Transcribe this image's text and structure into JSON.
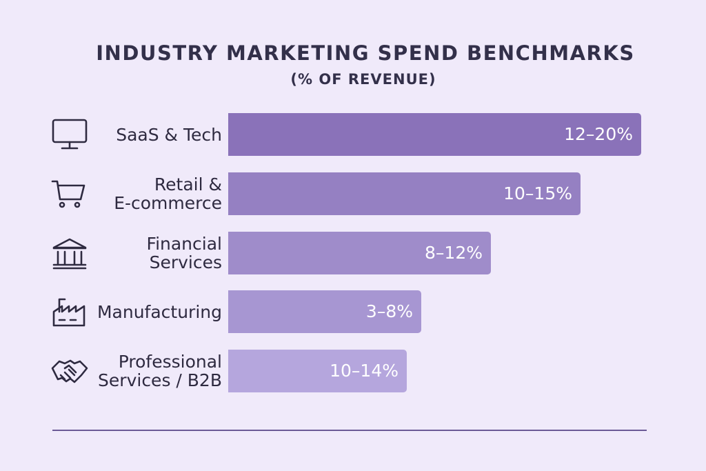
{
  "chart_data": {
    "type": "bar",
    "orientation": "horizontal",
    "title": "INDUSTRY MARKETING SPEND BENCHMARKS",
    "subtitle": "(% OF REVENUE)",
    "categories": [
      "SaaS & Tech",
      "Retail &\nE-commerce",
      "Financial\nServices",
      "Manufacturing",
      "Professional\nServices / B2B"
    ],
    "icons": [
      "monitor-icon",
      "shopping-cart-icon",
      "bank-icon",
      "factory-icon",
      "handshake-icon"
    ],
    "values": [
      {
        "low": 12,
        "high": 20,
        "label": "12–20%"
      },
      {
        "low": 10,
        "high": 15,
        "label": "10–15%"
      },
      {
        "low": 8,
        "high": 12,
        "label": "8–12%"
      },
      {
        "low": 3,
        "high": 8,
        "label": "3–8%"
      },
      {
        "low": 10,
        "high": 14,
        "label": "10–14%"
      }
    ],
    "colors": [
      "#8a72b9",
      "#9580c2",
      "#9f8cca",
      "#a796d2",
      "#b5a6dd"
    ],
    "grid": false,
    "legend": "none"
  }
}
